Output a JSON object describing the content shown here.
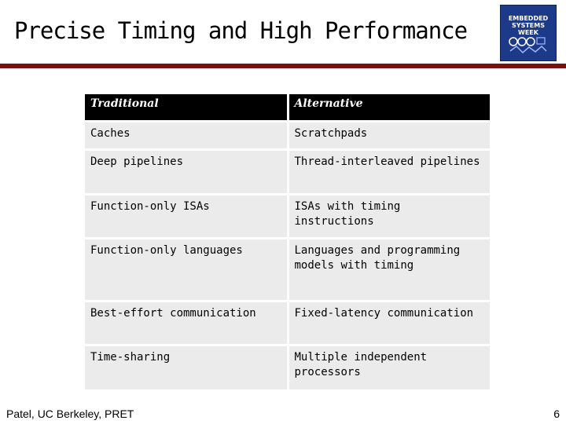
{
  "slide": {
    "title": "Precise Timing and High Performance",
    "logo_text": "EMBEDDED SYSTEMS WEEK",
    "accent_color": "#7a1010"
  },
  "table": {
    "headers": [
      "Traditional",
      "Alternative"
    ],
    "rows": [
      {
        "traditional": "Caches",
        "alternative": "Scratchpads"
      },
      {
        "traditional": "Deep pipelines",
        "alternative": "Thread-interleaved pipelines"
      },
      {
        "traditional": "Function-only ISAs",
        "alternative": "ISAs with timing instructions"
      },
      {
        "traditional": "Function-only languages",
        "alternative": "Languages and programming models with timing"
      },
      {
        "traditional": "Best-effort communication",
        "alternative": "Fixed-latency communication"
      },
      {
        "traditional": "Time-sharing",
        "alternative": "Multiple independent processors"
      }
    ]
  },
  "footer": {
    "author": "Patel, UC Berkeley, PRET",
    "page_number": "6"
  }
}
